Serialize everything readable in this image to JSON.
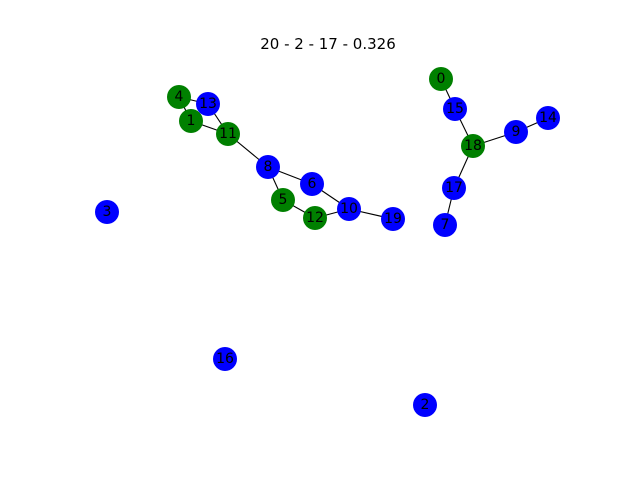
{
  "title": "20 - 2 - 17 - 0.326",
  "colors": {
    "green": "#008000",
    "blue": "#0000ff",
    "edge": "#000000",
    "label": "#000000"
  },
  "nodes": [
    {
      "id": "0",
      "group": "green"
    },
    {
      "id": "1",
      "group": "green"
    },
    {
      "id": "2",
      "group": "blue"
    },
    {
      "id": "3",
      "group": "blue"
    },
    {
      "id": "4",
      "group": "green"
    },
    {
      "id": "5",
      "group": "green"
    },
    {
      "id": "6",
      "group": "blue"
    },
    {
      "id": "7",
      "group": "blue"
    },
    {
      "id": "8",
      "group": "blue"
    },
    {
      "id": "9",
      "group": "blue"
    },
    {
      "id": "10",
      "group": "blue"
    },
    {
      "id": "11",
      "group": "green"
    },
    {
      "id": "12",
      "group": "green"
    },
    {
      "id": "13",
      "group": "blue"
    },
    {
      "id": "14",
      "group": "blue"
    },
    {
      "id": "15",
      "group": "blue"
    },
    {
      "id": "16",
      "group": "blue"
    },
    {
      "id": "17",
      "group": "blue"
    },
    {
      "id": "18",
      "group": "green"
    },
    {
      "id": "19",
      "group": "blue"
    }
  ],
  "edges": [
    [
      "4",
      "13"
    ],
    [
      "4",
      "1"
    ],
    [
      "13",
      "11"
    ],
    [
      "1",
      "11"
    ],
    [
      "11",
      "8"
    ],
    [
      "8",
      "6"
    ],
    [
      "8",
      "5"
    ],
    [
      "5",
      "12"
    ],
    [
      "6",
      "10"
    ],
    [
      "12",
      "10"
    ],
    [
      "10",
      "19"
    ],
    [
      "0",
      "15"
    ],
    [
      "15",
      "18"
    ],
    [
      "18",
      "9"
    ],
    [
      "9",
      "14"
    ],
    [
      "18",
      "17"
    ],
    [
      "17",
      "7"
    ]
  ]
}
